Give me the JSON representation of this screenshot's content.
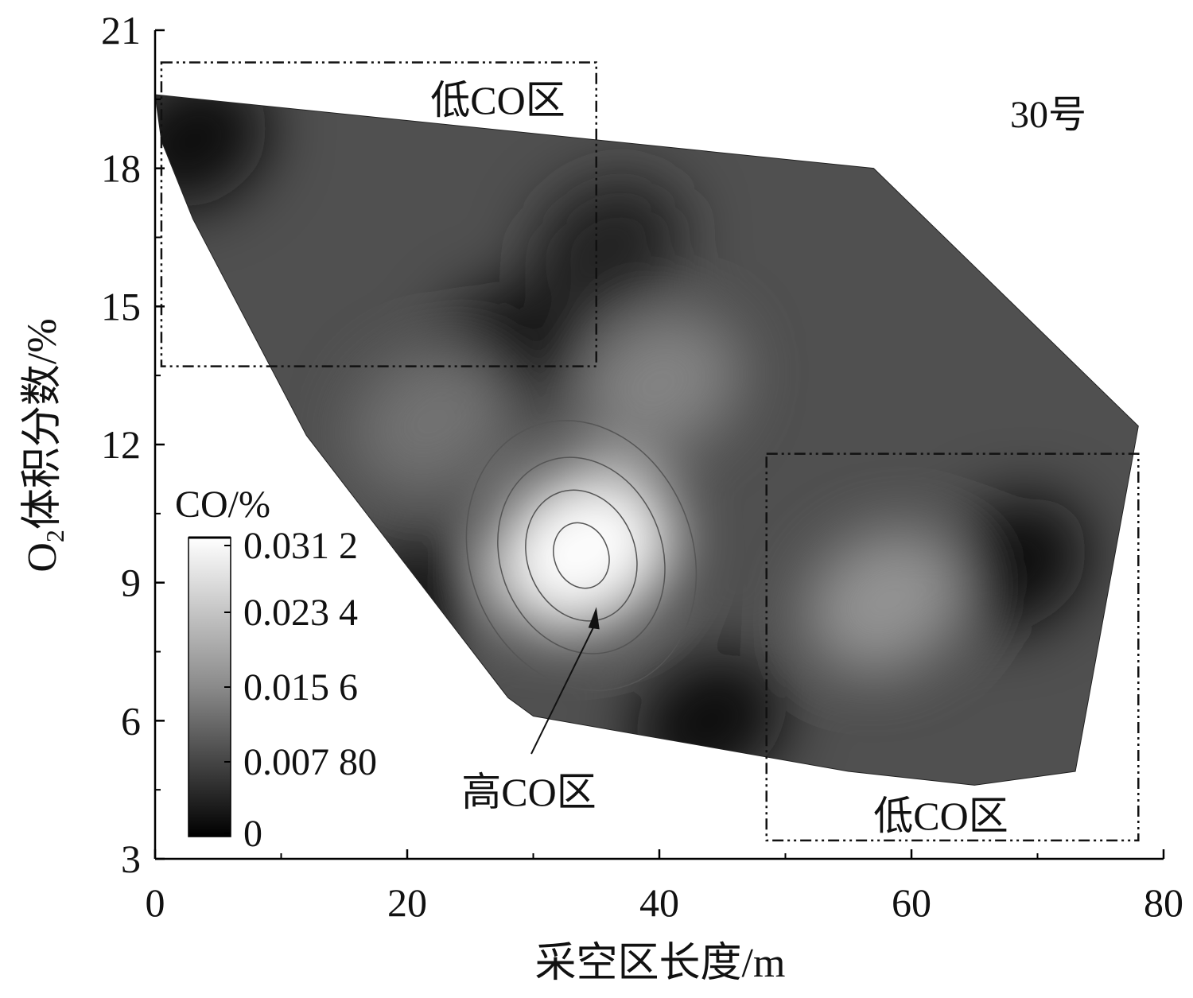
{
  "chart_data": {
    "type": "heatmap",
    "subtype": "filled contour map",
    "title": "30号",
    "xlabel": "采空区长度/m",
    "ylabel_main": "O",
    "ylabel_sub": "2",
    "ylabel_rest": "体积分数/%",
    "xlim": [
      0,
      80
    ],
    "ylim": [
      3,
      21
    ],
    "xticks": [
      0,
      20,
      40,
      60,
      80
    ],
    "yticks": [
      3,
      6,
      9,
      12,
      15,
      18,
      21
    ],
    "colorbar": {
      "title": "CO/%",
      "range": [
        0,
        0.0312
      ],
      "tick_values": [
        0.0312,
        0.0234,
        0.0156,
        0.0078,
        0
      ],
      "tick_labels": [
        "0.031 2",
        "0.023 4",
        "0.015 6",
        "0.007 80",
        "0"
      ],
      "colormap": "grayscale (black=low, white=high)"
    },
    "domain_boundary": [
      [
        0,
        19.6
      ],
      [
        57,
        18.0
      ],
      [
        78,
        12.4
      ],
      [
        73,
        4.9
      ],
      [
        65,
        4.6
      ],
      [
        55,
        4.9
      ],
      [
        30,
        6.1
      ],
      [
        28,
        6.5
      ],
      [
        12,
        12.2
      ],
      [
        3,
        16.9
      ],
      [
        0.5,
        18.6
      ]
    ],
    "features": [
      {
        "x": 34,
        "y": 9.7,
        "value": 0.031,
        "kind": "high"
      },
      {
        "x": 28,
        "y": 14.0,
        "value": 0.002,
        "kind": "low"
      },
      {
        "x": 36,
        "y": 16.3,
        "value": 0.004,
        "kind": "low"
      },
      {
        "x": 68,
        "y": 9.4,
        "value": 0.001,
        "kind": "low"
      },
      {
        "x": 44,
        "y": 6.0,
        "value": 0.002,
        "kind": "low"
      },
      {
        "x": 3,
        "y": 18.6,
        "value": 0.001,
        "kind": "low"
      },
      {
        "x": 20,
        "y": 8.5,
        "value": 0.003,
        "kind": "low"
      },
      {
        "x": 58,
        "y": 8.6,
        "value": 0.018,
        "kind": "high"
      },
      {
        "x": 40,
        "y": 13.3,
        "value": 0.016,
        "kind": "high"
      },
      {
        "x": 22,
        "y": 12.5,
        "value": 0.014,
        "kind": "high"
      }
    ],
    "annotations": [
      {
        "text": "低CO区",
        "box": {
          "x": [
            0.5,
            35
          ],
          "y": [
            13.7,
            20.3
          ]
        }
      },
      {
        "text": "低CO区",
        "box": {
          "x": [
            48.5,
            78
          ],
          "y": [
            3.4,
            11.8
          ]
        }
      },
      {
        "text": "高CO区",
        "arrow_to": {
          "x": 35,
          "y": 8.4
        }
      }
    ]
  }
}
